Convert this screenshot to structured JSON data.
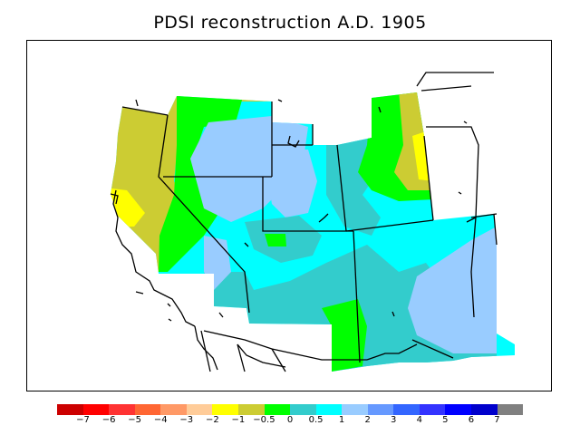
{
  "title": "PDSI reconstruction A.D. 1905",
  "legend": {
    "colors": [
      "#cc0000",
      "#ff0000",
      "#ff3333",
      "#ff6633",
      "#ff9966",
      "#ffcc99",
      "#ffff00",
      "#cccc33",
      "#00ff00",
      "#33cccc",
      "#00ffff",
      "#99ccff",
      "#6699ff",
      "#3366ff",
      "#3333ff",
      "#0000ff",
      "#0000cc",
      "#808080"
    ],
    "labels": [
      "−7",
      "−6",
      "−5",
      "−4",
      "−3",
      "−2",
      "−1",
      "−0.5",
      "0",
      "0.5",
      "1",
      "2",
      "3",
      "4",
      "5",
      "6",
      "7"
    ]
  }
}
